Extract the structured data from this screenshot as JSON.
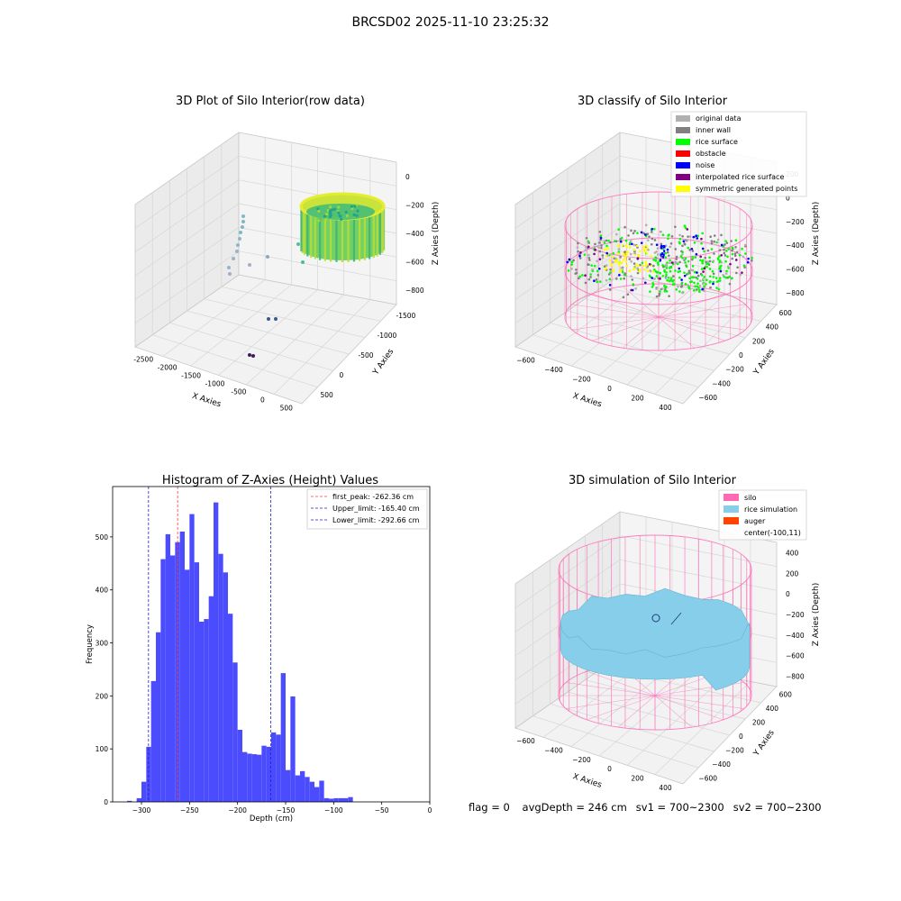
{
  "suptitle": "BRCSD02 2025-11-10 23:25:32",
  "footer": {
    "flag": "flag = 0",
    "avg_depth": "avgDepth = 246 cm",
    "sv1": "sv1 = 700~2300",
    "sv2": "sv2 = 700~2300"
  },
  "colors": {
    "bars": "#4c4cff",
    "first_peak": "#ff3b3b",
    "limits": "#2020c8",
    "original": "#b0b0b0",
    "inner_wall": "#808080",
    "rice_surface": "#00ff00",
    "obstacle": "#ff0000",
    "noise": "#0000ff",
    "interpolated": "#800080",
    "symmetric": "#ffff00",
    "silo": "#ff69b4",
    "rice_sim": "#87ceeb",
    "auger": "#ff4500"
  },
  "chart_data": [
    {
      "type": "scatter3d",
      "title": "3D Plot of Silo Interior(row data)",
      "xlabel": "X Axies",
      "ylabel": "Y Axies",
      "zlabel": "Z Axies (Depth)",
      "x_ticks": [
        "-2500",
        "-2000",
        "-1500",
        "-1000",
        "-500",
        "0",
        "500"
      ],
      "y_ticks": [
        "-1500",
        "-1000",
        "-500",
        "0",
        "500"
      ],
      "z_ticks": [
        "0",
        "−200",
        "−400",
        "−600",
        "−800"
      ],
      "colormap": "viridis"
    },
    {
      "type": "scatter3d",
      "title": "3D classify of Silo Interior",
      "xlabel": "X Axies",
      "ylabel": "Y Axies",
      "zlabel": "Z Axies (Depth)",
      "x_ticks": [
        "−600",
        "−400",
        "−200",
        "0",
        "200",
        "400"
      ],
      "y_ticks": [
        "600",
        "400",
        "200",
        "0",
        "−200",
        "−400",
        "−600"
      ],
      "z_ticks": [
        "200",
        "0",
        "−200",
        "−400",
        "−600",
        "−800"
      ],
      "legend": [
        "original data",
        "inner wall",
        "rice surface",
        "obstacle",
        "noise",
        "interpolated rice surface",
        "symmetric generated points"
      ],
      "legend_position": "top-right"
    },
    {
      "type": "bar",
      "title": "Histogram of Z-Axies (Height) Values",
      "xlabel": "Depth (cm)",
      "ylabel": "Frequency",
      "x_ticks": [
        "−300",
        "−250",
        "−200",
        "−150",
        "−100",
        "−50",
        "0"
      ],
      "y_ticks": [
        "0",
        "100",
        "200",
        "300",
        "400",
        "500"
      ],
      "xlim": [
        -330,
        0
      ],
      "ylim": [
        0,
        595
      ],
      "bin_start": -320,
      "bin_width": 5,
      "values": [
        0,
        2,
        0,
        7,
        38,
        104,
        228,
        320,
        458,
        505,
        465,
        490,
        510,
        438,
        543,
        452,
        340,
        345,
        388,
        565,
        468,
        433,
        355,
        263,
        136,
        94,
        91,
        90,
        89,
        106,
        104,
        131,
        127,
        243,
        60,
        199,
        50,
        58,
        47,
        38,
        28,
        40,
        7,
        6,
        7,
        7,
        7,
        9,
        0
      ],
      "lines": [
        {
          "name": "first_peak: -262.36 cm",
          "x": -262.36,
          "style": "first_peak"
        },
        {
          "name": "Upper_limit: -165.40 cm",
          "x": -165.4,
          "style": "limits"
        },
        {
          "name": "Lower_limit: -292.66 cm",
          "x": -292.66,
          "style": "limits"
        }
      ],
      "legend_position": "top-right"
    },
    {
      "type": "surface3d",
      "title": "3D simulation of Silo Interior",
      "xlabel": "X Axies",
      "ylabel": "Y Axies",
      "zlabel": "Z Axies (Depth)",
      "x_ticks": [
        "−600",
        "−400",
        "−200",
        "0",
        "200",
        "400"
      ],
      "y_ticks": [
        "600",
        "400",
        "200",
        "0",
        "−200",
        "−400",
        "−600"
      ],
      "z_ticks": [
        "400",
        "200",
        "0",
        "−200",
        "−400",
        "−600",
        "−800"
      ],
      "legend": [
        "silo",
        "rice simulation",
        "auger",
        "center(-100,11)"
      ],
      "legend_position": "top-right"
    }
  ]
}
